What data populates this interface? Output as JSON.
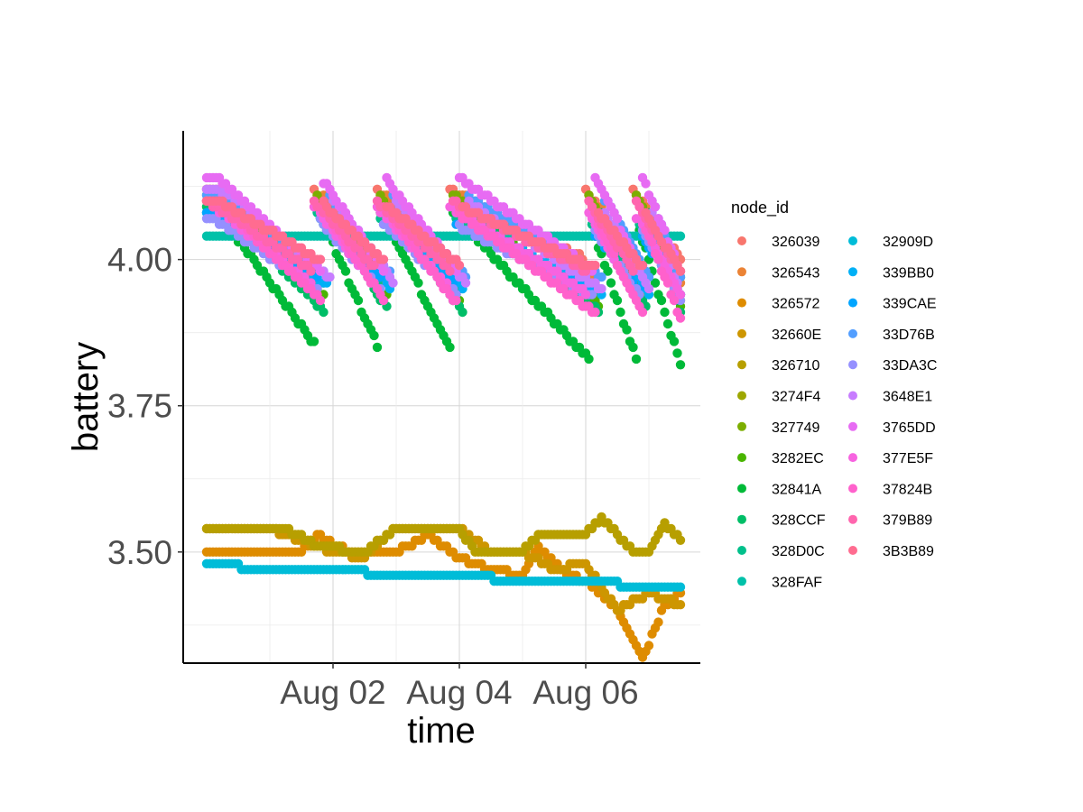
{
  "chart_data": {
    "type": "scatter",
    "xlabel": "time",
    "ylabel": "battery",
    "x_ticks": [
      "Aug 02",
      "Aug 04",
      "Aug 06"
    ],
    "y_ticks": [
      "3.50",
      "3.75",
      "4.00"
    ],
    "xlim": [
      "2023-07-31T00:00",
      "2023-08-07T12:00"
    ],
    "ylim": [
      3.31,
      4.22
    ],
    "grid": true,
    "legend": {
      "title": "node_id",
      "placement": "right"
    },
    "series": [
      {
        "name": "326039",
        "color": "#F8766D",
        "base": 4.06,
        "amp": 0.06,
        "pattern": "saw"
      },
      {
        "name": "326543",
        "color": "#EB8335",
        "base": 4.05,
        "amp": 0.07,
        "pattern": "saw"
      },
      {
        "name": "326572",
        "color": "#DE8C00",
        "base": 3.5,
        "amp": 0.04,
        "pattern": "step",
        "points": [
          [
            "2023-07-31T00:00",
            3.5
          ],
          [
            "2023-08-01T12:00",
            3.5
          ],
          [
            "2023-08-01T18:00",
            3.53
          ],
          [
            "2023-08-02T06:00",
            3.5
          ],
          [
            "2023-08-03T00:00",
            3.5
          ],
          [
            "2023-08-03T12:00",
            3.53
          ],
          [
            "2023-08-04T00:00",
            3.49
          ],
          [
            "2023-08-04T12:00",
            3.47
          ],
          [
            "2023-08-05T00:00",
            3.46
          ],
          [
            "2023-08-05T06:00",
            3.51
          ],
          [
            "2023-08-05T12:00",
            3.48
          ],
          [
            "2023-08-05T18:00",
            3.46
          ],
          [
            "2023-08-06T00:00",
            3.45
          ],
          [
            "2023-08-06T12:00",
            3.4
          ],
          [
            "2023-08-06T22:00",
            3.32
          ],
          [
            "2023-08-07T06:00",
            3.41
          ],
          [
            "2023-08-07T12:00",
            3.43
          ]
        ]
      },
      {
        "name": "32660E",
        "color": "#CD9600",
        "base": 3.53,
        "amp": 0.02,
        "pattern": "step",
        "points": [
          [
            "2023-07-31T00:00",
            3.54
          ],
          [
            "2023-08-01T00:00",
            3.54
          ],
          [
            "2023-08-01T12:00",
            3.52
          ],
          [
            "2023-08-02T00:00",
            3.5
          ],
          [
            "2023-08-02T12:00",
            3.49
          ],
          [
            "2023-08-03T00:00",
            3.54
          ],
          [
            "2023-08-04T00:00",
            3.54
          ],
          [
            "2023-08-04T12:00",
            3.5
          ],
          [
            "2023-08-05T00:00",
            3.5
          ],
          [
            "2023-08-05T12:00",
            3.47
          ],
          [
            "2023-08-06T00:00",
            3.48
          ],
          [
            "2023-08-06T12:00",
            3.4
          ],
          [
            "2023-08-07T00:00",
            3.43
          ],
          [
            "2023-08-07T12:00",
            3.41
          ]
        ]
      },
      {
        "name": "326710",
        "color": "#B79F00",
        "base": 3.52,
        "amp": 0.03,
        "pattern": "step",
        "points": [
          [
            "2023-07-31T00:00",
            3.54
          ],
          [
            "2023-08-01T06:00",
            3.54
          ],
          [
            "2023-08-01T18:00",
            3.51
          ],
          [
            "2023-08-02T12:00",
            3.5
          ],
          [
            "2023-08-03T00:00",
            3.54
          ],
          [
            "2023-08-04T00:00",
            3.54
          ],
          [
            "2023-08-04T06:00",
            3.5
          ],
          [
            "2023-08-05T00:00",
            3.5
          ],
          [
            "2023-08-05T06:00",
            3.53
          ],
          [
            "2023-08-06T00:00",
            3.53
          ],
          [
            "2023-08-06T06:00",
            3.56
          ],
          [
            "2023-08-06T12:00",
            3.53
          ],
          [
            "2023-08-06T18:00",
            3.5
          ],
          [
            "2023-08-07T00:00",
            3.5
          ],
          [
            "2023-08-07T06:00",
            3.55
          ],
          [
            "2023-08-07T12:00",
            3.52
          ]
        ]
      },
      {
        "name": "3274F4",
        "color": "#9DA700",
        "base": 4.03,
        "amp": 0.06,
        "pattern": "saw"
      },
      {
        "name": "327749",
        "color": "#7CAE00",
        "base": 4.04,
        "amp": 0.07,
        "pattern": "saw"
      },
      {
        "name": "3282EC",
        "color": "#49B500",
        "base": 4.02,
        "amp": 0.08,
        "pattern": "saw"
      },
      {
        "name": "32841A",
        "color": "#00BA38",
        "base": 3.98,
        "amp": 0.12,
        "pattern": "saw"
      },
      {
        "name": "328CCF",
        "color": "#00BE67",
        "base": 4.0,
        "amp": 0.09,
        "pattern": "saw"
      },
      {
        "name": "328D0C",
        "color": "#00C08B",
        "base": 4.02,
        "amp": 0.06,
        "pattern": "saw"
      },
      {
        "name": "328FAF",
        "color": "#00C1A9",
        "base": 4.04,
        "amp": 0.04,
        "pattern": "flat"
      },
      {
        "name": "32909D",
        "color": "#00BCD8",
        "base": 3.46,
        "amp": 0.02,
        "pattern": "decline",
        "points": [
          [
            "2023-07-31T00:00",
            3.48
          ],
          [
            "2023-08-01T00:00",
            3.47
          ],
          [
            "2023-08-02T00:00",
            3.47
          ],
          [
            "2023-08-03T00:00",
            3.46
          ],
          [
            "2023-08-04T00:00",
            3.46
          ],
          [
            "2023-08-05T00:00",
            3.45
          ],
          [
            "2023-08-06T00:00",
            3.45
          ],
          [
            "2023-08-07T00:00",
            3.44
          ],
          [
            "2023-08-07T12:00",
            3.44
          ]
        ]
      },
      {
        "name": "339BB0",
        "color": "#00B0F6",
        "base": 4.02,
        "amp": 0.06,
        "pattern": "saw"
      },
      {
        "name": "339CAE",
        "color": "#00A5FF",
        "base": 4.03,
        "amp": 0.05,
        "pattern": "saw"
      },
      {
        "name": "33D76B",
        "color": "#529EFF",
        "base": 4.04,
        "amp": 0.07,
        "pattern": "saw"
      },
      {
        "name": "33DA3C",
        "color": "#9590FF",
        "base": 4.01,
        "amp": 0.06,
        "pattern": "saw"
      },
      {
        "name": "3648E1",
        "color": "#C77CFF",
        "base": 4.05,
        "amp": 0.07,
        "pattern": "saw"
      },
      {
        "name": "3765DD",
        "color": "#E76BF3",
        "base": 4.06,
        "amp": 0.08,
        "pattern": "saw"
      },
      {
        "name": "377E5F",
        "color": "#F763E0",
        "base": 4.03,
        "amp": 0.07,
        "pattern": "saw"
      },
      {
        "name": "37824B",
        "color": "#FF61CC",
        "base": 4.02,
        "amp": 0.08,
        "pattern": "saw"
      },
      {
        "name": "379B89",
        "color": "#FF65AE",
        "base": 4.04,
        "amp": 0.06,
        "pattern": "saw"
      },
      {
        "name": "3B3B89",
        "color": "#FF6C90",
        "base": 4.05,
        "amp": 0.05,
        "pattern": "saw"
      }
    ]
  }
}
